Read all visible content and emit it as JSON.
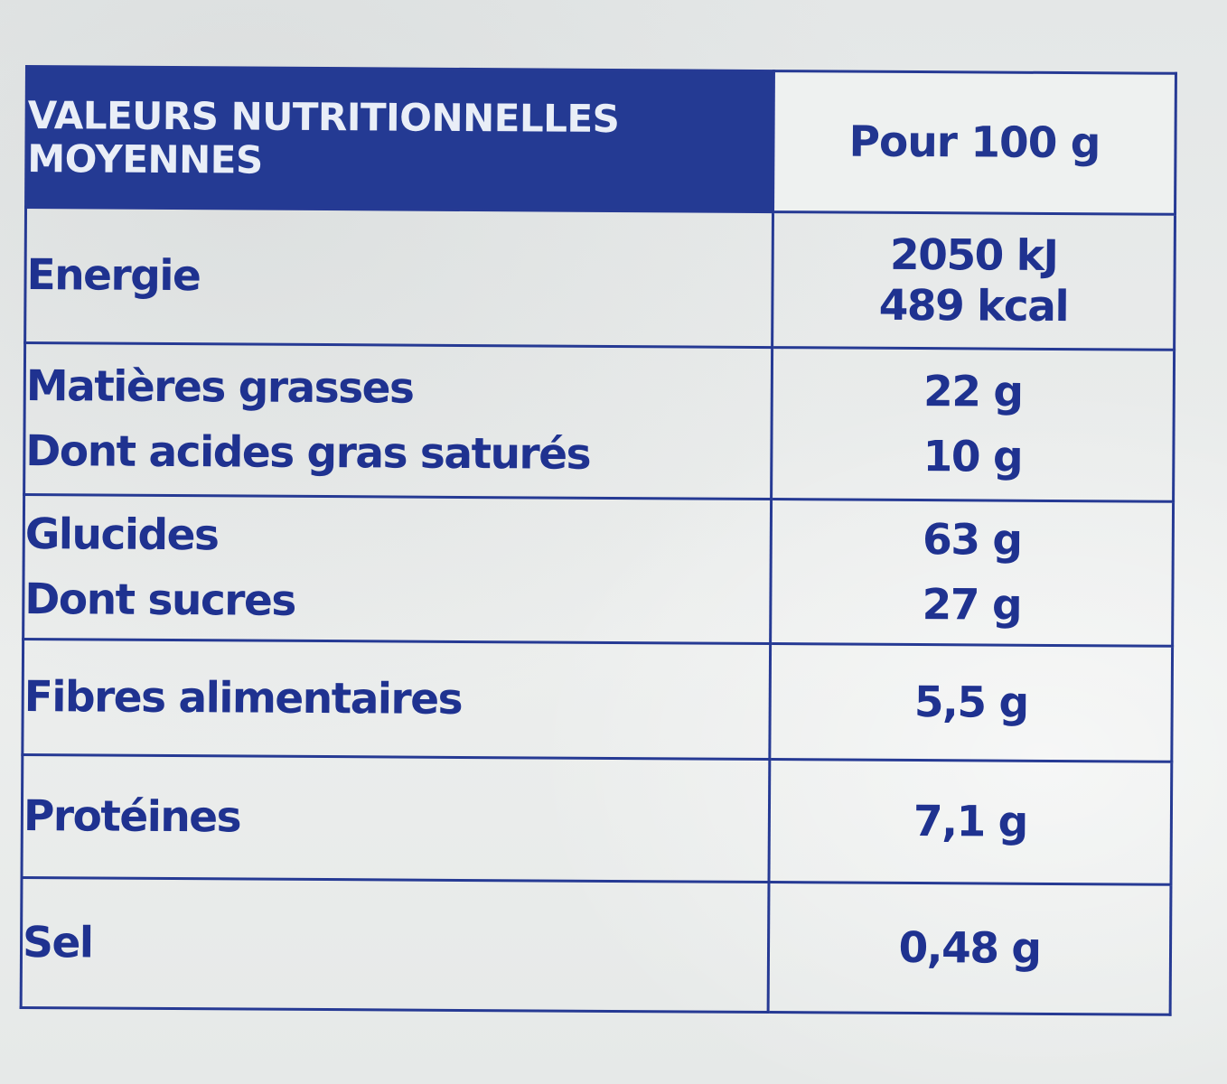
{
  "table": {
    "header": {
      "title_line1": "VALEURS NUTRITIONNELLES",
      "title_line2": "MOYENNES",
      "unit": "Pour 100 g"
    },
    "rows": {
      "energy": {
        "label": "Energie",
        "value_kj": "2050 kJ",
        "value_kcal": "489 kcal"
      },
      "fat": {
        "label": "Matières grasses",
        "value": "22 g",
        "sub_label": "Dont acides gras saturés",
        "sub_value": "10 g"
      },
      "carbs": {
        "label": "Glucides",
        "value": "63 g",
        "sub_label": "Dont sucres",
        "sub_value": "27 g"
      },
      "fibre": {
        "label": "Fibres alimentaires",
        "value": "5,5 g"
      },
      "protein": {
        "label": "Protéines",
        "value": "7,1 g"
      },
      "salt": {
        "label": "Sel",
        "value": "0,48 g"
      }
    }
  },
  "colors": {
    "ink_blue": "#1f3290",
    "header_fill": "#243a93",
    "board": "#e8ebea"
  }
}
